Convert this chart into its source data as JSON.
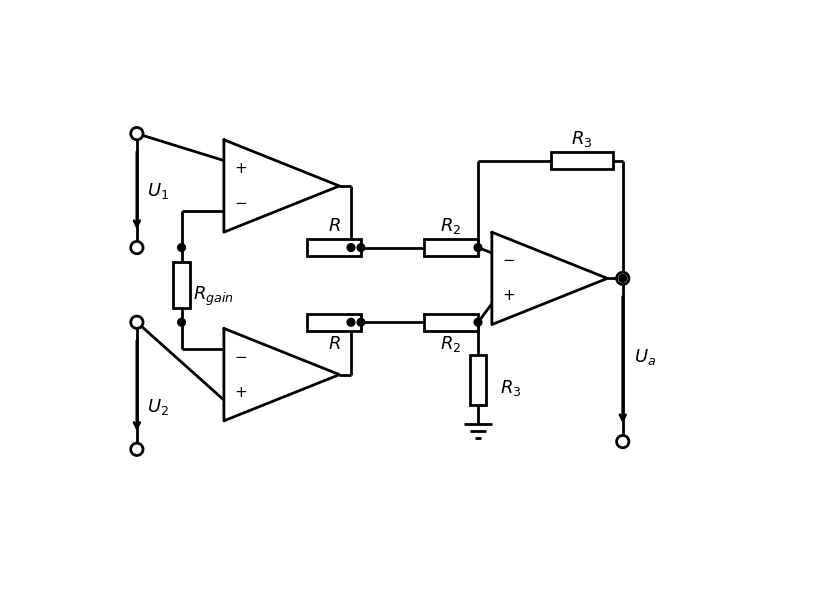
{
  "bg_color": "#ffffff",
  "line_color": "#000000",
  "lw": 2.0,
  "fig_width": 8.2,
  "fig_height": 6.0,
  "dpi": 100
}
